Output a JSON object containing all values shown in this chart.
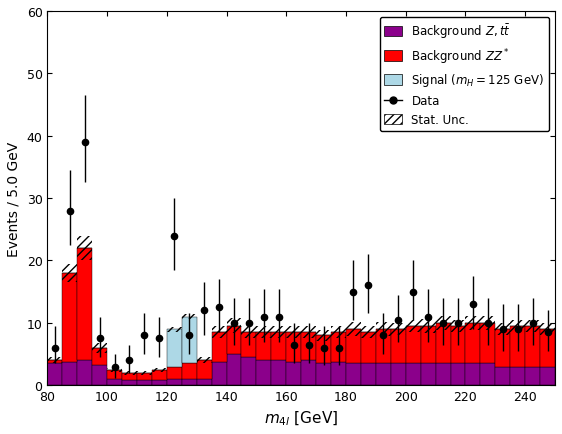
{
  "bin_edges": [
    80,
    85,
    90,
    95,
    100,
    105,
    110,
    115,
    120,
    125,
    130,
    135,
    140,
    145,
    150,
    155,
    160,
    165,
    170,
    175,
    180,
    185,
    190,
    195,
    200,
    205,
    210,
    215,
    220,
    225,
    230,
    235,
    240,
    245,
    250
  ],
  "bg_z_tt": [
    3.5,
    3.8,
    4.0,
    3.2,
    1.0,
    0.8,
    0.8,
    0.8,
    1.0,
    1.0,
    1.0,
    3.8,
    5.0,
    4.5,
    4.0,
    4.0,
    3.8,
    4.0,
    3.5,
    3.8,
    3.5,
    3.5,
    3.5,
    3.5,
    3.5,
    3.5,
    3.5,
    3.5,
    3.5,
    3.5,
    3.0,
    3.0,
    3.0,
    3.0
  ],
  "bg_zz_total": [
    4.0,
    18.0,
    22.0,
    6.0,
    2.5,
    2.0,
    2.0,
    2.5,
    3.0,
    3.5,
    4.0,
    8.5,
    9.5,
    8.5,
    8.5,
    8.5,
    8.5,
    8.5,
    8.0,
    8.5,
    9.0,
    8.5,
    9.0,
    9.0,
    9.5,
    9.5,
    10.0,
    9.5,
    10.0,
    10.0,
    9.0,
    9.5,
    9.5,
    9.0
  ],
  "signal": [
    0.0,
    0.0,
    0.0,
    0.0,
    0.0,
    0.0,
    0.0,
    0.0,
    6.0,
    7.5,
    0.0,
    0.0,
    0.0,
    0.0,
    0.0,
    0.0,
    0.0,
    0.0,
    0.0,
    0.0,
    0.0,
    0.0,
    0.0,
    0.0,
    0.0,
    0.0,
    0.0,
    0.0,
    0.0,
    0.0,
    0.0,
    0.0,
    0.0,
    0.0
  ],
  "stat_unc_half": [
    0.5,
    1.5,
    2.0,
    0.8,
    0.3,
    0.3,
    0.3,
    0.3,
    0.4,
    0.4,
    0.5,
    1.0,
    1.2,
    1.0,
    1.0,
    1.0,
    1.0,
    1.0,
    0.9,
    1.0,
    1.1,
    1.0,
    1.1,
    1.0,
    1.0,
    1.1,
    1.1,
    1.0,
    1.1,
    1.1,
    1.0,
    1.0,
    1.0,
    0.9
  ],
  "data_x": [
    82.5,
    87.5,
    92.5,
    97.5,
    102.5,
    107.5,
    112.5,
    117.5,
    122.5,
    127.5,
    132.5,
    137.5,
    142.5,
    147.5,
    152.5,
    157.5,
    162.5,
    167.5,
    172.5,
    177.5,
    182.5,
    187.5,
    192.5,
    197.5,
    202.5,
    207.5,
    212.5,
    217.5,
    222.5,
    227.5,
    232.5,
    237.5,
    242.5,
    247.5
  ],
  "data_y": [
    6.0,
    28.0,
    39.0,
    7.5,
    3.0,
    4.0,
    8.0,
    7.5,
    24.0,
    8.0,
    12.0,
    12.5,
    10.0,
    10.0,
    11.0,
    11.0,
    6.5,
    6.5,
    6.0,
    6.0,
    15.0,
    16.0,
    8.0,
    10.5,
    15.0,
    11.0,
    10.0,
    10.0,
    13.0,
    10.0,
    9.0,
    9.0,
    10.0,
    8.5
  ],
  "data_yerr_lo": [
    2.5,
    5.5,
    6.5,
    3.0,
    1.8,
    2.0,
    3.0,
    3.0,
    5.5,
    3.0,
    4.0,
    4.0,
    3.5,
    3.5,
    4.0,
    4.0,
    3.0,
    3.0,
    2.8,
    2.8,
    4.5,
    4.5,
    3.0,
    3.5,
    4.5,
    4.0,
    3.5,
    3.5,
    4.0,
    3.5,
    3.5,
    3.5,
    3.5,
    3.0
  ],
  "data_yerr_hi": [
    3.5,
    6.5,
    7.5,
    3.5,
    2.0,
    2.5,
    3.5,
    3.5,
    6.0,
    3.5,
    4.5,
    4.5,
    4.0,
    4.0,
    4.5,
    4.5,
    3.5,
    3.5,
    3.5,
    3.5,
    5.0,
    5.0,
    3.5,
    4.0,
    5.0,
    4.5,
    4.0,
    4.0,
    4.5,
    4.0,
    4.0,
    4.0,
    4.0,
    3.5
  ],
  "color_bg_z": "#8B008B",
  "color_bg_zz": "#FF0000",
  "color_signal": "#ADD8E6",
  "xlim": [
    80,
    250
  ],
  "ylim": [
    0,
    60
  ],
  "xlabel": "m_{4l} [GeV]",
  "ylabel": "Events / 5.0 GeV",
  "xticks": [
    80,
    100,
    120,
    140,
    160,
    180,
    200,
    220,
    240
  ],
  "yticks": [
    0,
    10,
    20,
    30,
    40,
    50,
    60
  ]
}
